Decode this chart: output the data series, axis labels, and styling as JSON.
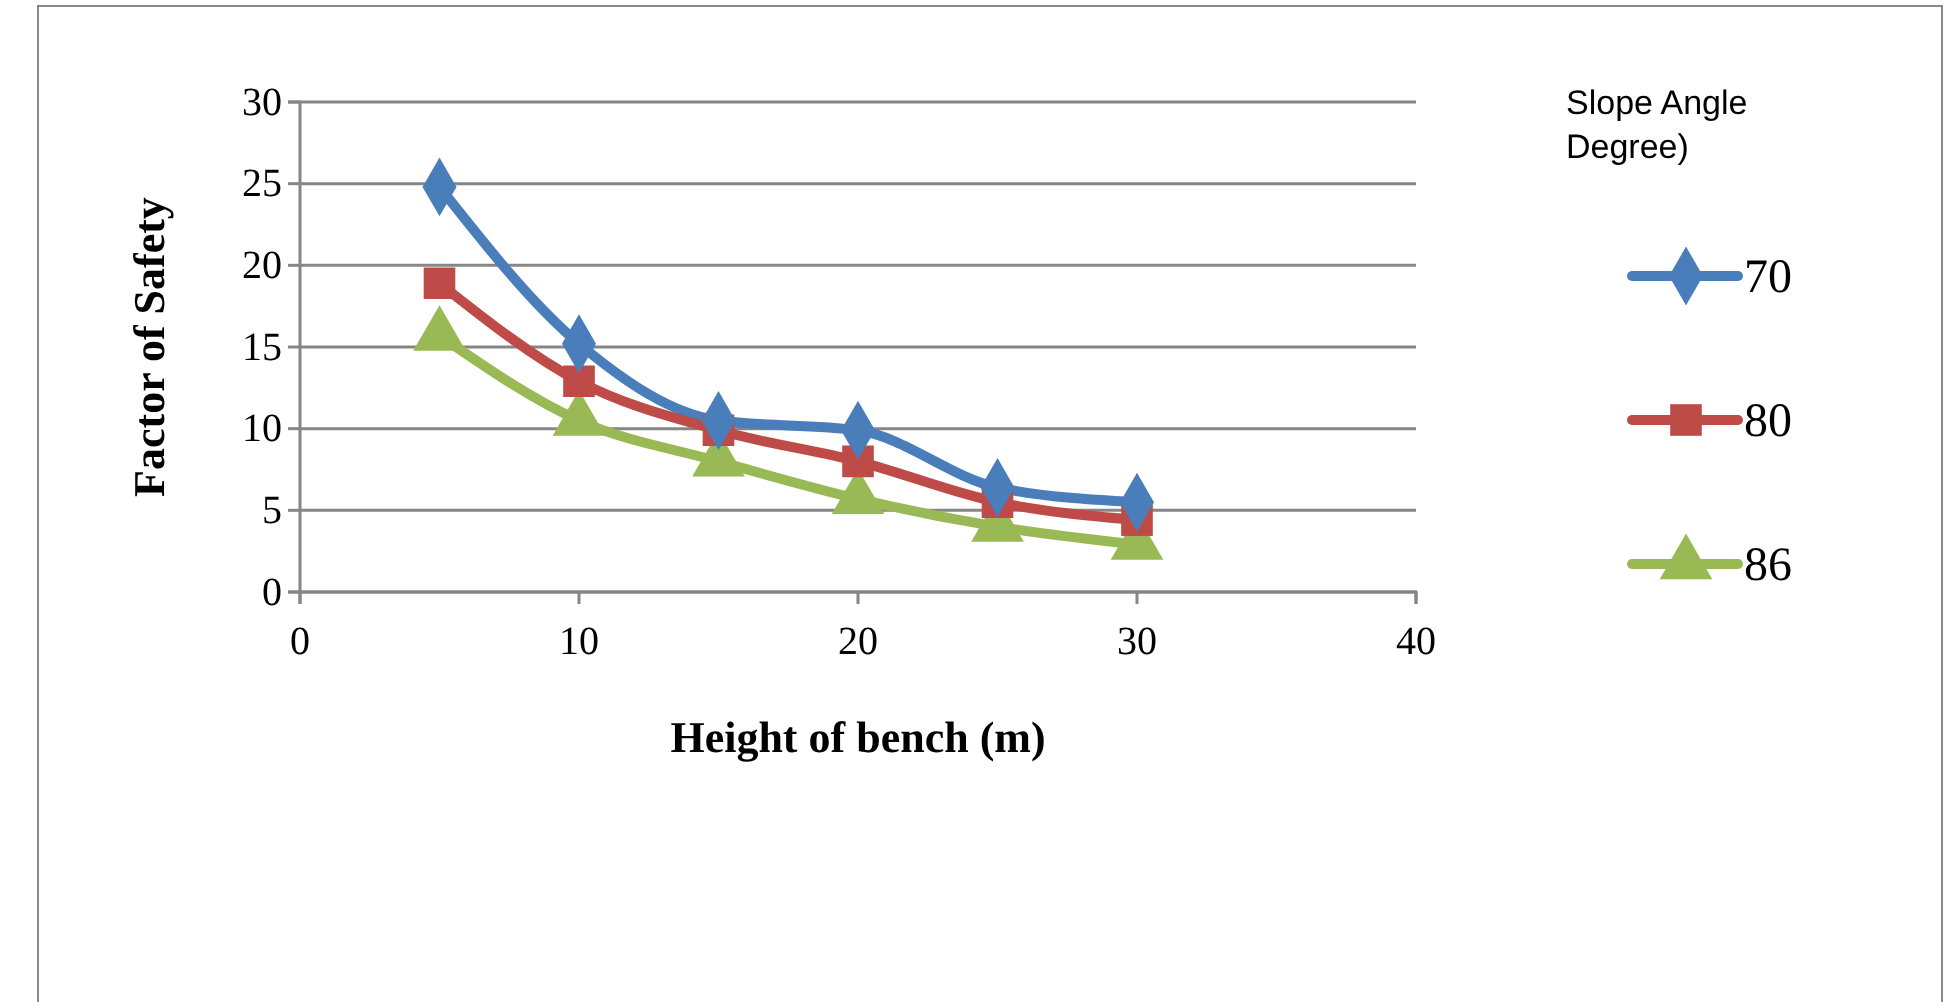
{
  "chart_data": {
    "type": "line",
    "xlabel": "Height of bench (m)",
    "ylabel": "Factor of Safety",
    "legend_title": "Slope Angle Degree)",
    "legend": "right",
    "grid": "y",
    "line_style": "solid",
    "x": [
      5,
      10,
      15,
      20,
      25,
      30
    ],
    "xlim": [
      0,
      40
    ],
    "xticks": [
      0,
      10,
      20,
      30,
      40
    ],
    "ylim": [
      0,
      30
    ],
    "yticks": [
      0,
      5,
      10,
      15,
      20,
      25,
      30
    ],
    "series": [
      {
        "name": "70",
        "color": "#4a7ebb",
        "marker": "diamond",
        "values": [
          24.8,
          15.2,
          10.5,
          9.9,
          6.4,
          5.5
        ]
      },
      {
        "name": "80",
        "color": "#be4b48",
        "marker": "square",
        "values": [
          18.9,
          12.9,
          9.9,
          8.0,
          5.5,
          4.4
        ]
      },
      {
        "name": "86",
        "color": "#98b954",
        "marker": "triangle",
        "values": [
          15.7,
          10.5,
          8.0,
          5.7,
          4.0,
          2.9
        ]
      }
    ]
  }
}
